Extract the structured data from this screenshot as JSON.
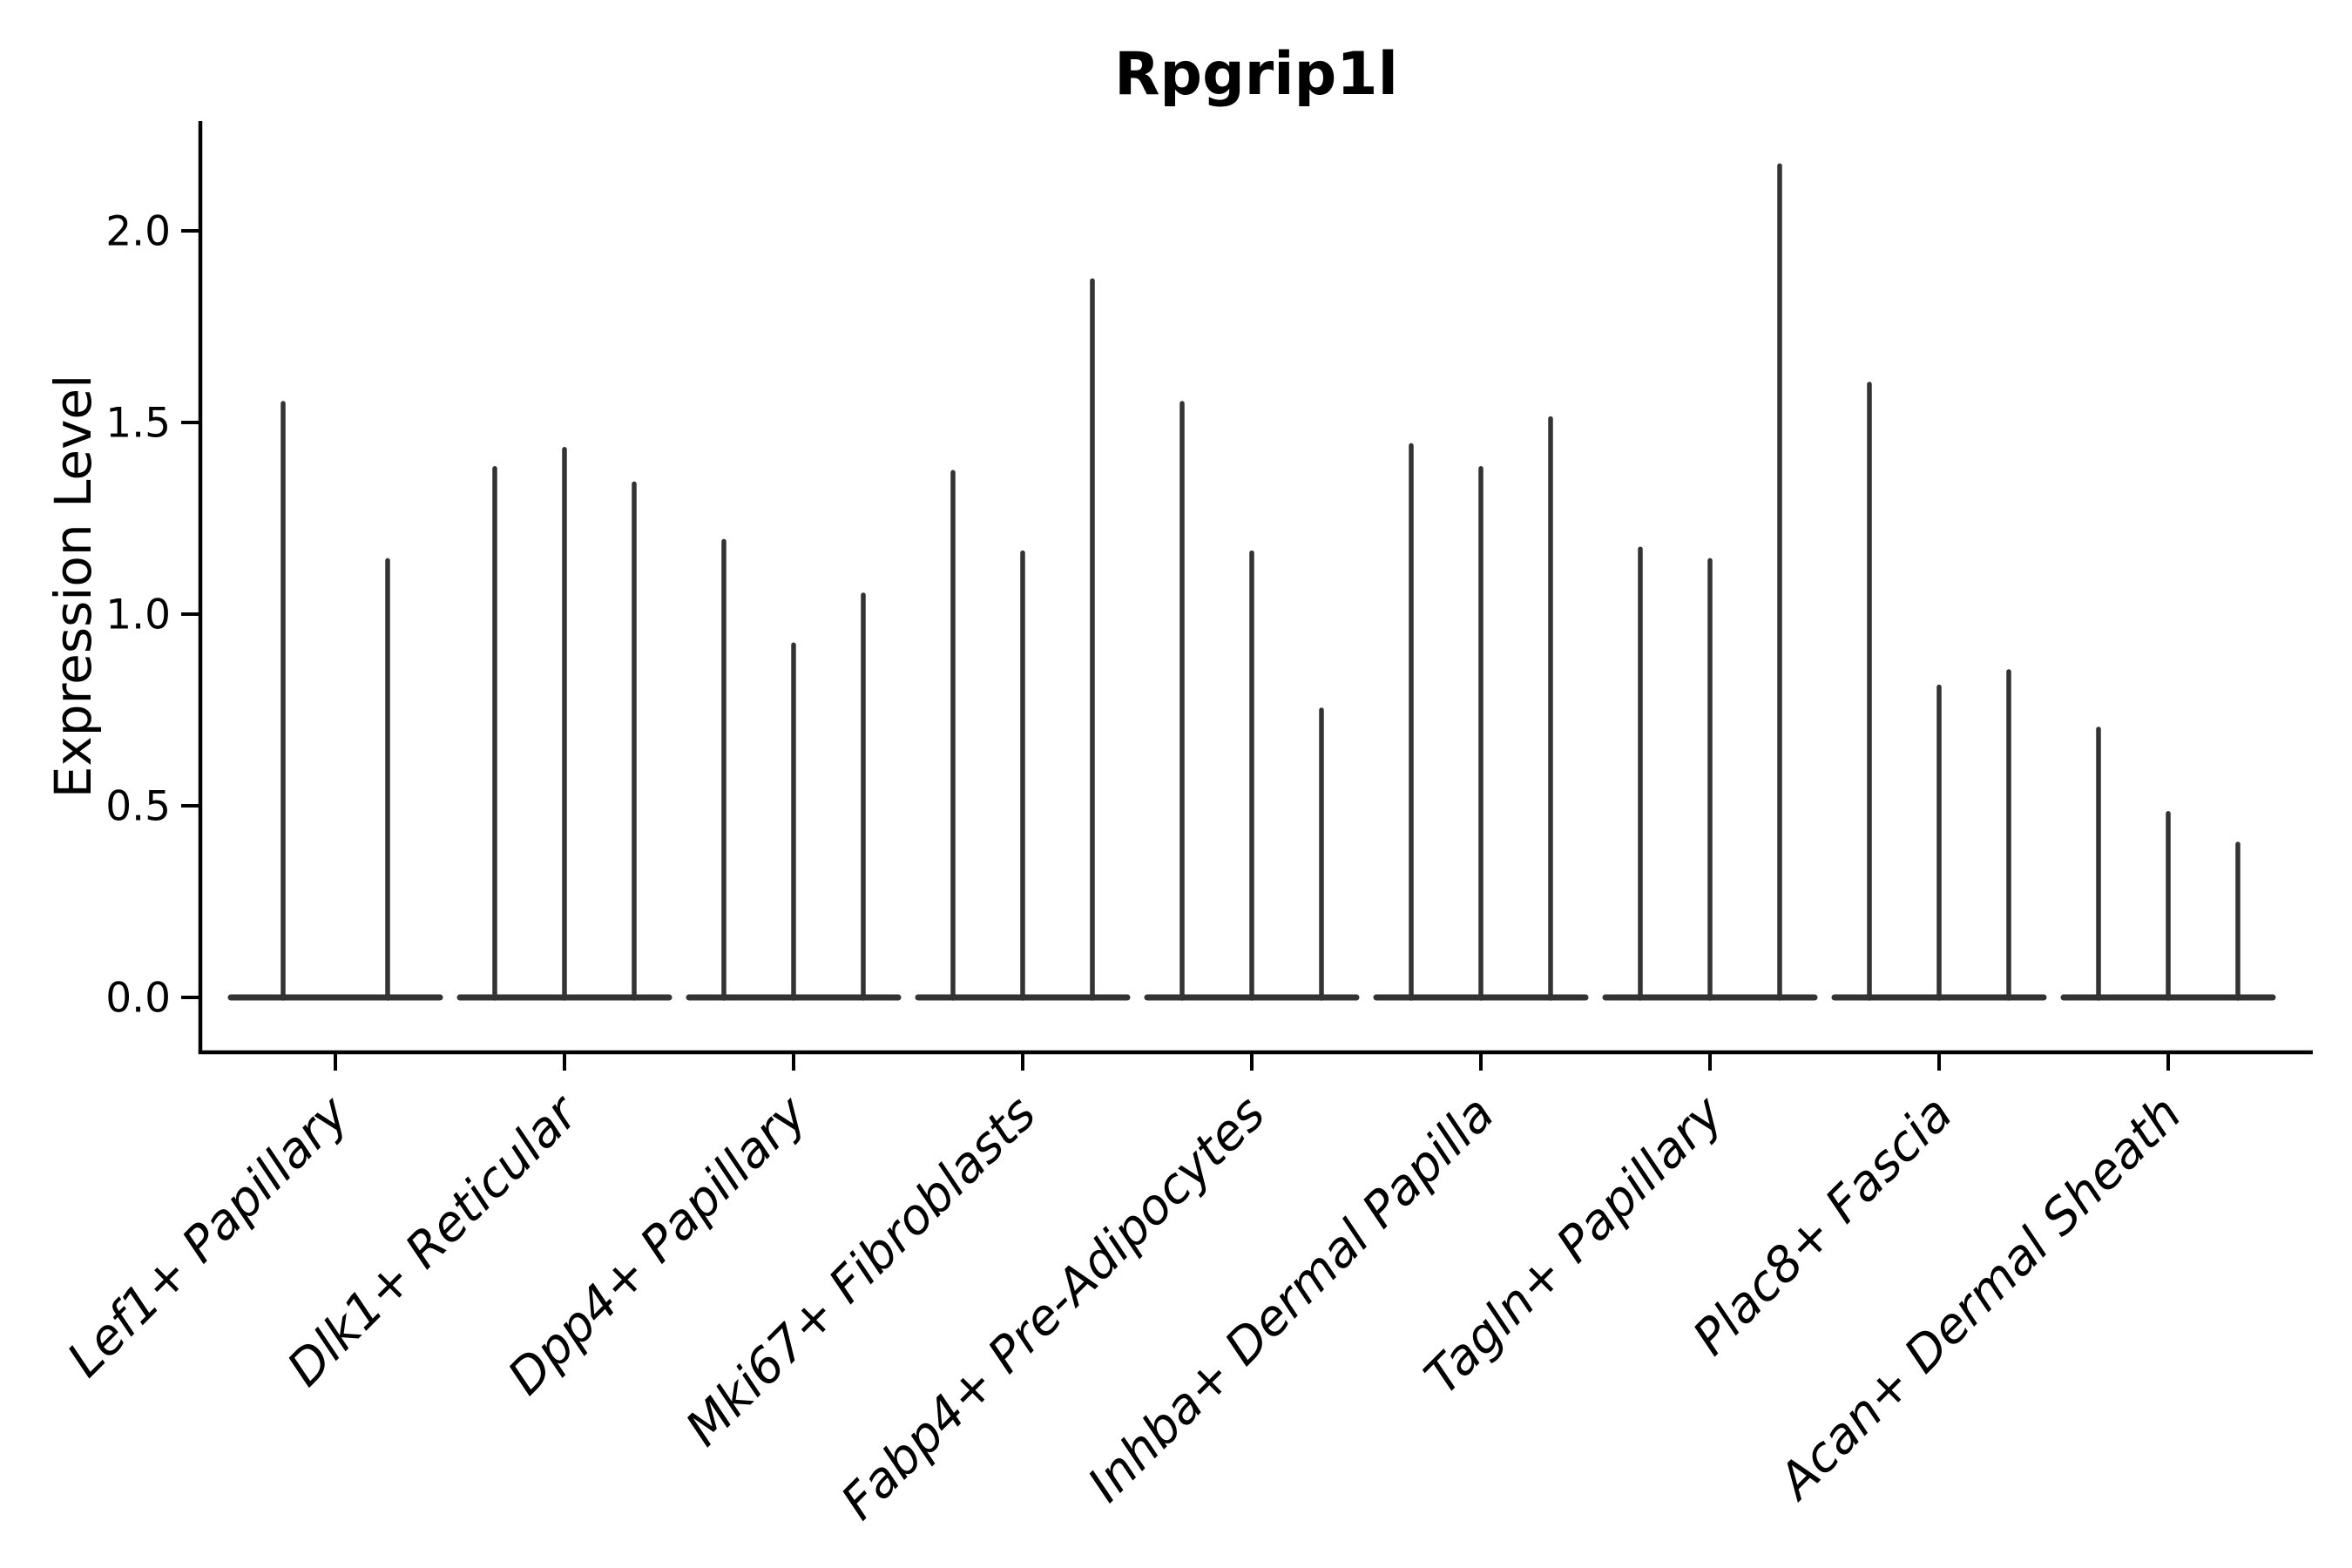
{
  "chart": {
    "title": "Rpgrip1l",
    "ylabel": "Expression Level"
  },
  "chart_data": {
    "type": "violin",
    "title": "Rpgrip1l",
    "xlabel": "",
    "ylabel": "Expression Level",
    "ylim": [
      -0.14,
      2.29
    ],
    "grid": false,
    "legend": null,
    "y_ticks": [
      0.0,
      0.5,
      1.0,
      1.5,
      2.0
    ],
    "y_tick_labels": [
      "0.0",
      "0.5",
      "1.0",
      "1.5",
      "2.0"
    ],
    "categories": [
      "Lef1+ Papillary",
      "Dlk1+ Reticular",
      "Dpp4+ Papillary",
      "Mki67+ Fibroblasts",
      "Fabp4+ Pre-Adipocytes",
      "Inhba+ Dermal Papilla",
      "Tagln+ Papillary",
      "Plac8+ Fascia",
      "Acan+ Dermal Sheath"
    ],
    "description": "Violin plot of Rpgrip1l expression; each category shows narrow spike-like violins (most cells at 0) whose tips mark the maximum expression level per violin.",
    "groups": [
      {
        "category": "Lef1+ Papillary",
        "violin_max_values": [
          1.55,
          1.14
        ]
      },
      {
        "category": "Dlk1+ Reticular",
        "violin_max_values": [
          1.38,
          1.43,
          1.34
        ]
      },
      {
        "category": "Dpp4+ Papillary",
        "violin_max_values": [
          1.19,
          0.92,
          1.05
        ]
      },
      {
        "category": "Mki67+ Fibroblasts",
        "violin_max_values": [
          1.37,
          1.16,
          1.87
        ]
      },
      {
        "category": "Fabp4+ Pre-Adipocytes",
        "violin_max_values": [
          1.55,
          1.16,
          0.75
        ]
      },
      {
        "category": "Inhba+ Dermal Papilla",
        "violin_max_values": [
          1.44,
          1.38,
          1.51
        ]
      },
      {
        "category": "Tagln+ Papillary",
        "violin_max_values": [
          1.17,
          1.14,
          2.17
        ]
      },
      {
        "category": "Plac8+ Fascia",
        "violin_max_values": [
          1.6,
          0.81,
          0.85
        ]
      },
      {
        "category": "Acan+ Dermal Sheath",
        "violin_max_values": [
          0.7,
          0.48,
          0.4
        ]
      }
    ],
    "style": {
      "violin_color": "#333333",
      "axis_color": "#000000",
      "background": "#ffffff"
    }
  }
}
